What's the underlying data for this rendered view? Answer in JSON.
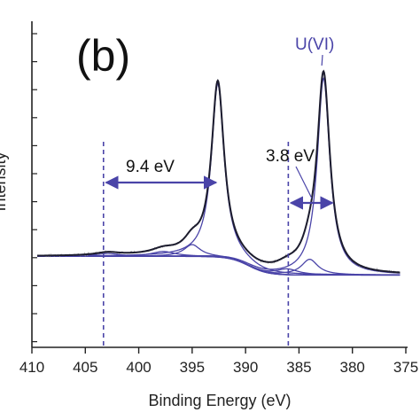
{
  "chart_data": {
    "type": "line",
    "panel_label": "(b)",
    "xlabel": "Binding Energy (eV)",
    "ylabel": "Intensity",
    "xlim": [
      410,
      375
    ],
    "x_reversed": true,
    "x_ticks": [
      "410",
      "405",
      "400",
      "395",
      "390",
      "385",
      "380",
      "375"
    ],
    "annotations": {
      "species": "U(VI)",
      "sat_gap_1": "9.4 eV",
      "sat_gap_2": "3.8 eV"
    },
    "reference_lines_x": [
      403.3,
      386.0
    ],
    "peaks": [
      {
        "center": 392.6,
        "height": 0.88,
        "width": 0.85
      },
      {
        "center": 382.7,
        "height": 1.0,
        "width": 0.85
      },
      {
        "center": 395.0,
        "height": 0.06,
        "width": 1.1
      },
      {
        "center": 384.0,
        "height": 0.08,
        "width": 1.1
      },
      {
        "center": 402.9,
        "height": 0.015,
        "width": 1.6
      },
      {
        "center": 397.7,
        "height": 0.025,
        "width": 1.6
      },
      {
        "center": 386.1,
        "height": 0.03,
        "width": 1.5
      }
    ],
    "colors": {
      "data": "#000000",
      "components": "#4a44a8",
      "envelope": "#3a3a6a",
      "reference": "#4a44a8",
      "arrows": "#4a44a8"
    }
  }
}
